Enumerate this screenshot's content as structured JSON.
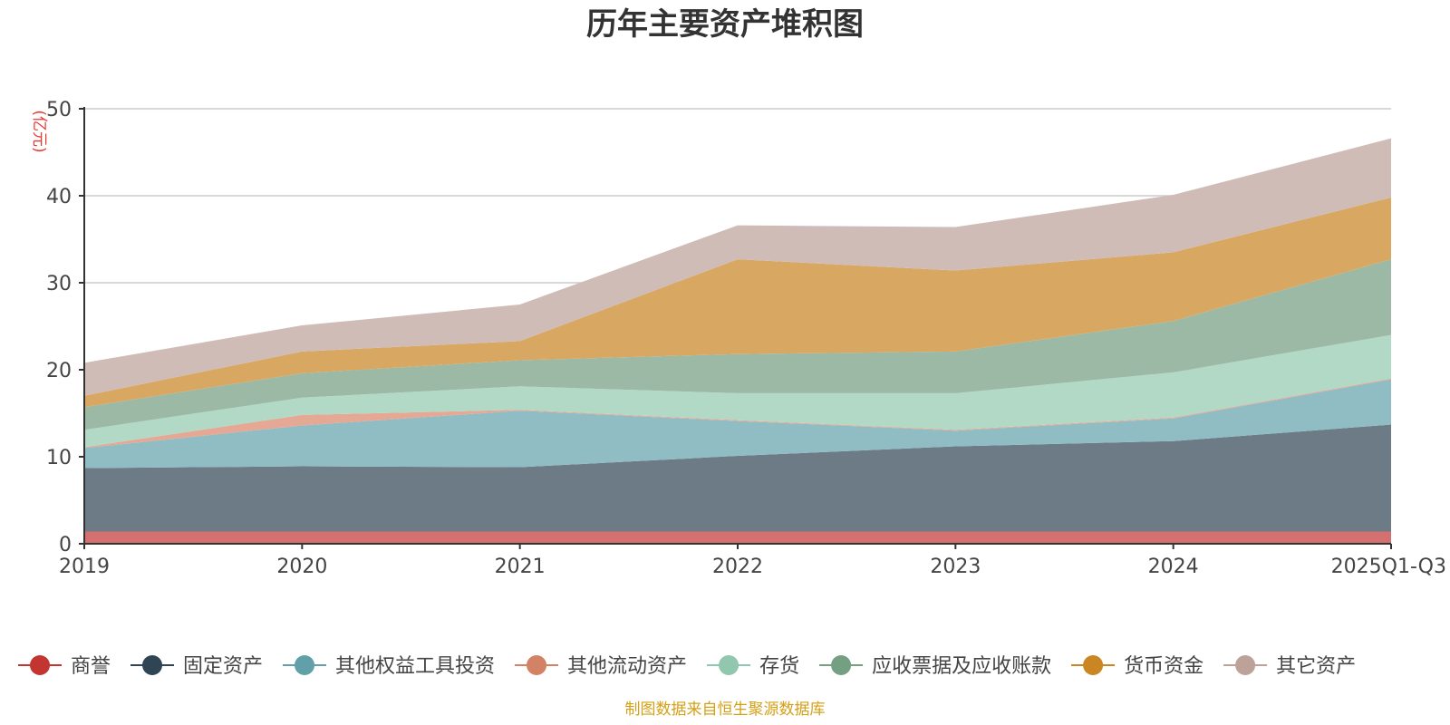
{
  "chart_data": {
    "type": "area",
    "stacked": true,
    "title": "历年主要资产堆积图",
    "ylabel": "(亿元)",
    "xlabel": "",
    "ylim": [
      0,
      50
    ],
    "yticks": [
      0,
      10,
      20,
      30,
      40,
      50
    ],
    "grid": true,
    "legend_position": "bottom",
    "categories": [
      "2019",
      "2020",
      "2021",
      "2022",
      "2023",
      "2024",
      "2025Q1-Q3"
    ],
    "series": [
      {
        "name": "商誉",
        "color": "#c23531",
        "fill": "#d4706f",
        "values": [
          1.4,
          1.4,
          1.4,
          1.4,
          1.4,
          1.4,
          1.4
        ]
      },
      {
        "name": "固定资产",
        "color": "#2f4554",
        "fill": "#6d7b87",
        "values": [
          7.3,
          7.5,
          7.4,
          8.7,
          9.8,
          10.4,
          12.3
        ]
      },
      {
        "name": "其他权益工具投资",
        "color": "#61a0a8",
        "fill": "#90bcc3",
        "values": [
          2.3,
          4.7,
          6.5,
          4.0,
          1.8,
          2.6,
          5.2
        ]
      },
      {
        "name": "其他流动资产",
        "color": "#d48265",
        "fill": "#e5a894",
        "values": [
          0.1,
          1.2,
          0.1,
          0.1,
          0.1,
          0.1,
          0.1
        ]
      },
      {
        "name": "存货",
        "color": "#91c7ae",
        "fill": "#b2d8c6",
        "values": [
          2.0,
          2.0,
          2.7,
          3.1,
          4.2,
          5.2,
          5.0
        ]
      },
      {
        "name": "应收票据及应收账款",
        "color": "#749f83",
        "fill": "#9cb9a6",
        "values": [
          2.6,
          2.8,
          3.0,
          4.5,
          4.8,
          5.9,
          8.7
        ]
      },
      {
        "name": "货币资金",
        "color": "#ca8622",
        "fill": "#d8a863",
        "values": [
          1.3,
          2.5,
          2.2,
          10.9,
          9.3,
          7.9,
          7.1
        ]
      },
      {
        "name": "其它资产",
        "color": "#bda29a",
        "fill": "#d0bcb6",
        "values": [
          3.8,
          3.0,
          4.2,
          3.9,
          5.0,
          6.6,
          6.8
        ]
      }
    ]
  },
  "footer": {
    "source_text": "制图数据来自恒生聚源数据库"
  }
}
